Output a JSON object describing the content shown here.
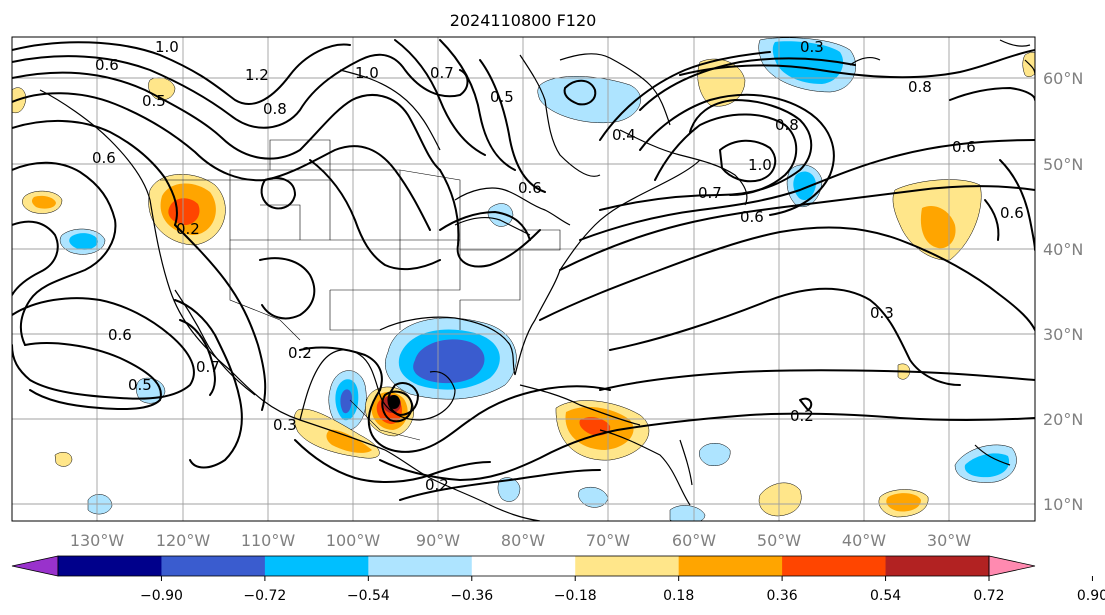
{
  "title": "2024110800 F120",
  "lon_labels": [
    "130°W",
    "120°W",
    "110°W",
    "100°W",
    "90°W",
    "80°W",
    "70°W",
    "60°W",
    "50°W",
    "40°W",
    "30°W"
  ],
  "lat_labels": [
    "60°N",
    "50°N",
    "40°N",
    "30°N",
    "20°N",
    "10°N"
  ],
  "colorbar": {
    "ticks": [
      "−0.90",
      "−0.72",
      "−0.54",
      "−0.36",
      "−0.18",
      "0.18",
      "0.36",
      "0.54",
      "0.72",
      "0.90"
    ],
    "colors": [
      "#9932cc",
      "#00008b",
      "#3a5ccf",
      "#00bfff",
      "#aee4ff",
      "#ffffff",
      "#ffe68a",
      "#ffa500",
      "#ff4500",
      "#b22222",
      "#ff8ab0"
    ]
  },
  "contour_labels": [
    {
      "text": "1.0"
    },
    {
      "text": "1.0"
    },
    {
      "text": "0.7"
    },
    {
      "text": "0.6"
    },
    {
      "text": "0.5"
    },
    {
      "text": "1.2"
    },
    {
      "text": "0.8"
    },
    {
      "text": "0.5"
    },
    {
      "text": "0.6"
    },
    {
      "text": "0.6"
    },
    {
      "text": "0.2"
    },
    {
      "text": "0.6"
    },
    {
      "text": "0.7"
    },
    {
      "text": "0.5"
    },
    {
      "text": "0.2"
    },
    {
      "text": "0.3"
    },
    {
      "text": "0.2"
    },
    {
      "text": "0.2"
    },
    {
      "text": "0.3"
    },
    {
      "text": "1.0"
    },
    {
      "text": "0.7"
    },
    {
      "text": "0.6"
    },
    {
      "text": "0.8"
    },
    {
      "text": "0.8"
    },
    {
      "text": "0.6"
    },
    {
      "text": "0.6"
    },
    {
      "text": "0.3"
    },
    {
      "text": "0.4"
    }
  ]
}
